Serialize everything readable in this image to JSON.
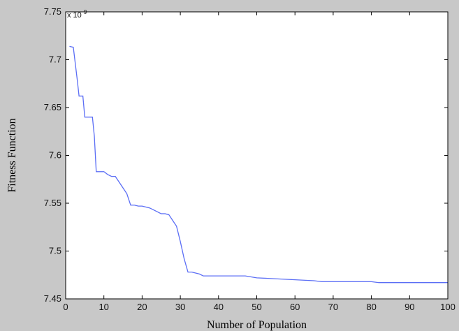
{
  "chart_data": {
    "type": "line",
    "title": "",
    "xlabel": "Number  of  Population",
    "ylabel": "Fitness Function",
    "y_multiplier_label": "x 10",
    "y_multiplier_exponent": "9",
    "xlim": [
      0,
      100
    ],
    "ylim": [
      7.45,
      7.75
    ],
    "x_ticks": [
      0,
      10,
      20,
      30,
      40,
      50,
      60,
      70,
      80,
      90,
      100
    ],
    "y_ticks": [
      7.45,
      7.5,
      7.55,
      7.6,
      7.65,
      7.7,
      7.75
    ],
    "x_tick_labels": [
      "0",
      "10",
      "20",
      "30",
      "40",
      "50",
      "60",
      "70",
      "80",
      "90",
      "100"
    ],
    "y_tick_labels": [
      "7.45",
      "7.5",
      "7.55",
      "7.6",
      "7.65",
      "7.7",
      "7.75"
    ],
    "grid": false,
    "line_color": "#5b6ef5",
    "background_color": "#c8c8c8",
    "plot_background_color": "#ffffff",
    "series": [
      {
        "x": [
          1,
          2,
          3,
          3.5,
          4.5,
          5,
          6,
          7,
          7.5,
          8,
          9,
          10,
          11,
          12,
          13,
          14,
          15,
          16,
          17,
          18,
          19,
          20,
          21,
          22,
          23,
          24,
          25,
          26,
          27,
          28,
          29,
          30,
          31,
          32,
          33,
          34,
          35,
          36,
          40,
          45,
          47,
          50,
          55,
          60,
          65,
          67,
          70,
          75,
          80,
          82,
          85,
          90,
          95,
          100
        ],
        "y": [
          7.714,
          7.713,
          7.68,
          7.662,
          7.662,
          7.64,
          7.64,
          7.64,
          7.62,
          7.583,
          7.583,
          7.583,
          7.58,
          7.578,
          7.578,
          7.572,
          7.566,
          7.56,
          7.548,
          7.548,
          7.547,
          7.547,
          7.546,
          7.545,
          7.543,
          7.541,
          7.539,
          7.539,
          7.538,
          7.532,
          7.526,
          7.51,
          7.492,
          7.478,
          7.478,
          7.477,
          7.476,
          7.474,
          7.474,
          7.474,
          7.474,
          7.472,
          7.471,
          7.47,
          7.469,
          7.468,
          7.468,
          7.468,
          7.468,
          7.467,
          7.467,
          7.467,
          7.467,
          7.467
        ]
      }
    ]
  }
}
